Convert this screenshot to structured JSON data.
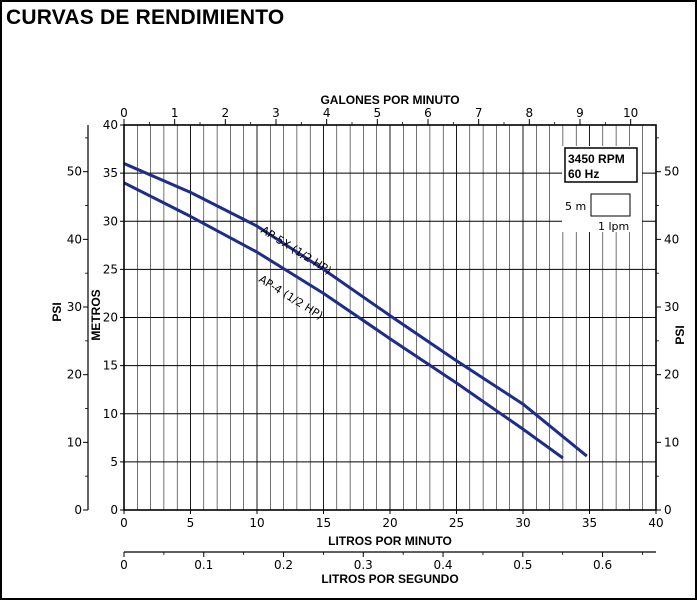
{
  "title": "CURVAS DE RENDIMIENTO",
  "chart_data": {
    "type": "line",
    "title": "CURVAS DE RENDIMIENTO",
    "x_primary": {
      "label": "LITROS POR MINUTO",
      "range": [
        0,
        40
      ],
      "ticks": [
        "0",
        "5",
        "10",
        "15",
        "20",
        "25",
        "30",
        "35",
        "40"
      ]
    },
    "x_top": {
      "label": "GALONES POR MINUTO",
      "range": [
        0,
        10.5
      ],
      "ticks": [
        "0",
        "1",
        "2",
        "3",
        "4",
        "5",
        "6",
        "7",
        "8",
        "9",
        "10"
      ]
    },
    "x_bottom_secondary": {
      "label": "LITROS POR SEGUNDO",
      "range": [
        0,
        0.667
      ],
      "ticks": [
        "0",
        "0.1",
        "0.2",
        "0.3",
        "0.4",
        "0.5",
        "0.6"
      ]
    },
    "y_primary": {
      "label": "METROS",
      "range": [
        0,
        40
      ],
      "ticks": [
        "0",
        "5",
        "10",
        "15",
        "20",
        "25",
        "30",
        "35",
        "40"
      ]
    },
    "y_left_psi": {
      "label": "PSI",
      "range": [
        0,
        56.9
      ],
      "ticks": [
        "0",
        "10",
        "20",
        "30",
        "40",
        "50"
      ]
    },
    "y_right_psi": {
      "label": "PSI",
      "range": [
        0,
        56.9
      ],
      "ticks": [
        "0",
        "10",
        "20",
        "30",
        "40",
        "50"
      ]
    },
    "series": [
      {
        "name": "AP-5X (1/2 HP)",
        "color": "#1f2d8a",
        "x": [
          0,
          5,
          10,
          15,
          20,
          25,
          30,
          34.8
        ],
        "y": [
          36,
          33,
          29.5,
          25,
          20.2,
          15.5,
          11,
          5.6
        ]
      },
      {
        "name": "AP-4 (1/2 HP)",
        "color": "#1f2d8a",
        "x": [
          0,
          5,
          10,
          15,
          20,
          25,
          30,
          33
        ],
        "y": [
          34,
          30.5,
          26.8,
          22.5,
          17.8,
          13.2,
          8.4,
          5.4
        ]
      }
    ],
    "legend": {
      "rpm": "3450 RPM",
      "hz": "60 Hz",
      "scale_vertical": "5 m",
      "scale_horizontal": "1 lpm"
    },
    "grid": true
  }
}
